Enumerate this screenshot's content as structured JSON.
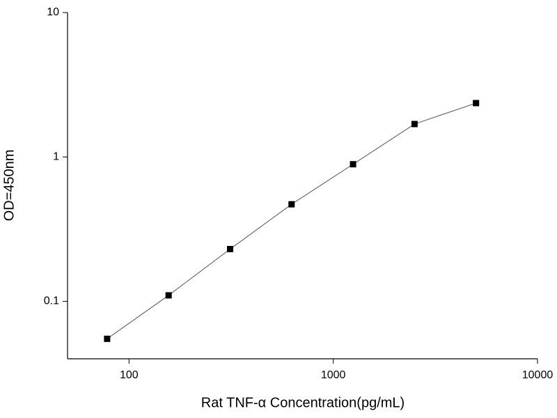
{
  "chart_data": {
    "type": "scatter-line",
    "x_label": "Rat TNF-α  Concentration(pg/mL)",
    "y_label": "OD=450nm",
    "x": [
      78.125,
      156.25,
      312.5,
      625,
      1250,
      2500,
      5000
    ],
    "values": [
      0.055,
      0.11,
      0.23,
      0.47,
      0.89,
      1.69,
      2.36
    ],
    "color": "#000000",
    "line_color": "#555555",
    "xscale": "log",
    "yscale": "log",
    "xlim": [
      50,
      10000
    ],
    "ylim": [
      0.04,
      10
    ],
    "xticks": [
      100,
      1000,
      10000
    ],
    "yticks": [
      0.1,
      1,
      10
    ]
  }
}
